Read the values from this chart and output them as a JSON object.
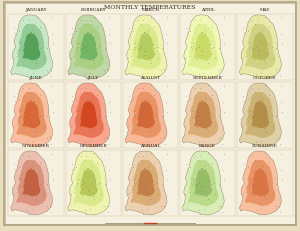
{
  "title": "MONTHLY TEMPERATURES",
  "title_fontsize": 4.5,
  "background_color": "#f5f0e0",
  "border_color": "#c8b89a",
  "outer_bg": "#e8dfc0",
  "grid_rows": 3,
  "grid_cols": 5,
  "month_labels": [
    "JANUARY",
    "FEBRUARY",
    "MARCH",
    "APRIL",
    "MAY",
    "JUNE",
    "JULY",
    "AUGUST",
    "SEPTEMBER",
    "OCTOBER",
    "NOVEMBER",
    "DECEMBER",
    "ANNUAL",
    "RANGE",
    "SUNSHINE"
  ],
  "map_colors_primary": [
    "#4a9a50",
    "#6ab060",
    "#b0c858",
    "#c8d860",
    "#b8b858",
    "#d86030",
    "#d04018",
    "#d06030",
    "#c07840",
    "#b08840",
    "#c05838",
    "#b0c050",
    "#c07840",
    "#90b860",
    "#d87040"
  ],
  "map_colors_secondary": [
    "#90c890",
    "#a8d080",
    "#d8e888",
    "#e0ee90",
    "#d0d080",
    "#e89060",
    "#e87050",
    "#e89060",
    "#d8a870",
    "#c8b070",
    "#d89078",
    "#d8e888",
    "#d8a870",
    "#b8d888",
    "#e89060"
  ],
  "map_colors_light": [
    "#c8e8c8",
    "#c0d8a8",
    "#eef4b0",
    "#f0f8b8",
    "#e8e8a8",
    "#f8c0a0",
    "#f8a890",
    "#f8b898",
    "#ecd0b0",
    "#e0d0a8",
    "#ecc0b0",
    "#eef4b0",
    "#ecd0b0",
    "#d8edb8",
    "#f8c0a0"
  ],
  "label_fontsize": 3.2
}
